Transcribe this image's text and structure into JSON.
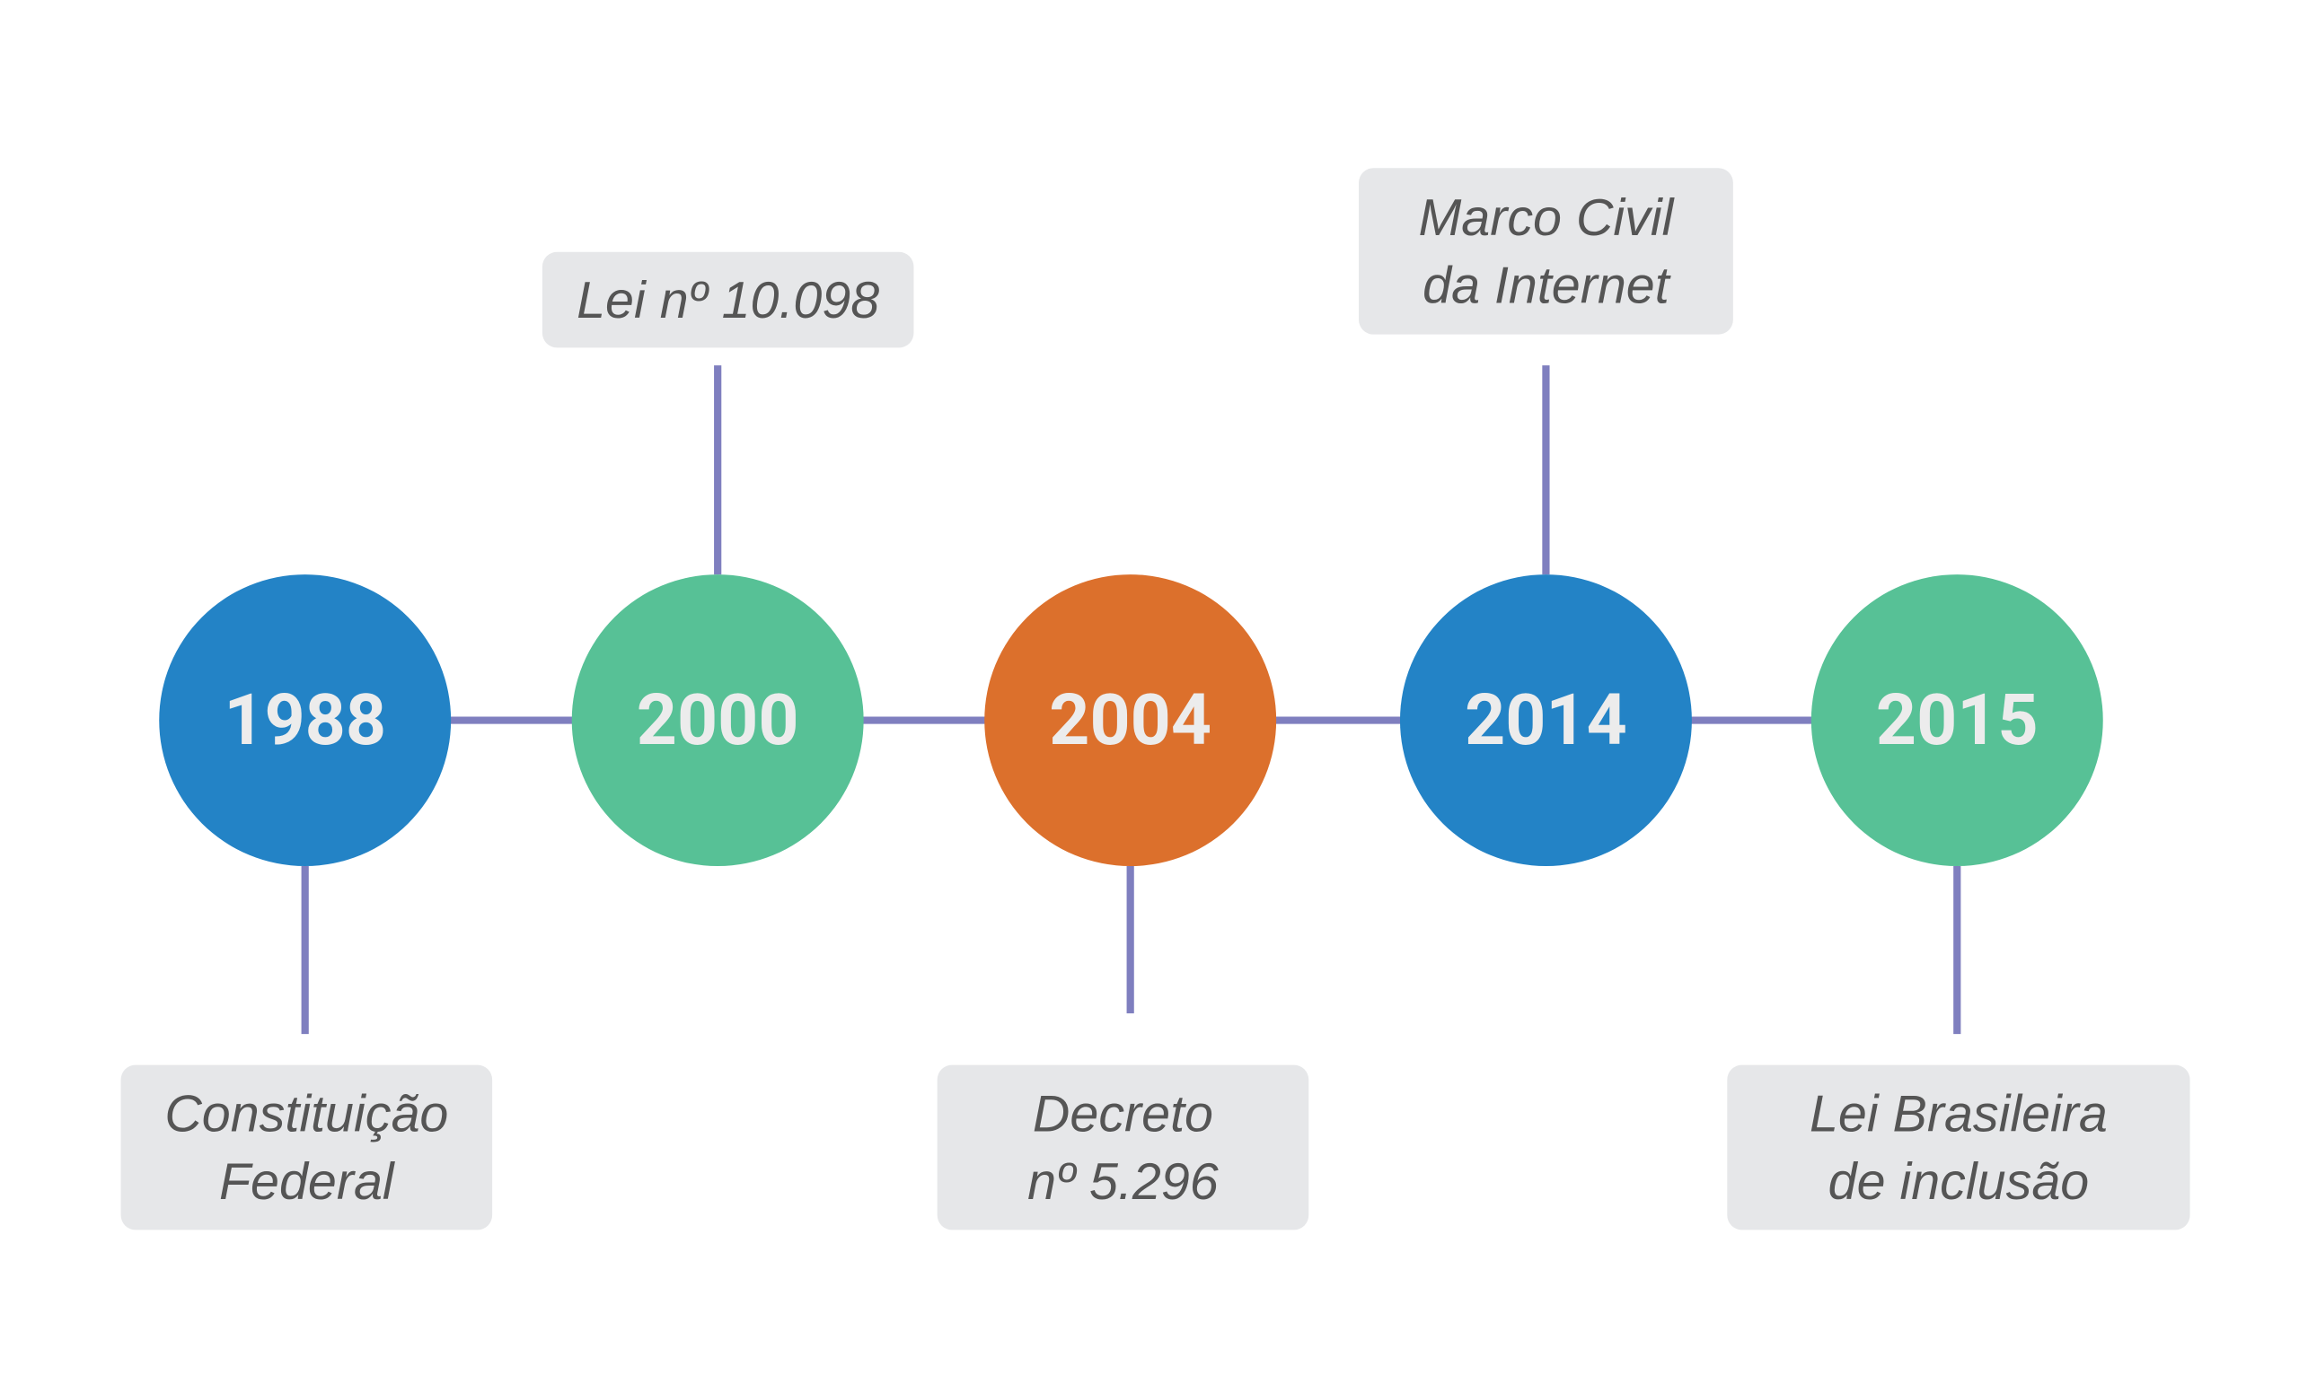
{
  "timeline": {
    "events": [
      {
        "year": "1988",
        "label": [
          "Constituição",
          "Federal"
        ]
      },
      {
        "year": "2000",
        "label": [
          "Lei nº 10.098"
        ]
      },
      {
        "year": "2004",
        "label": [
          "Decreto",
          "nº 5.296"
        ]
      },
      {
        "year": "2014",
        "label": [
          "Marco Civil",
          "da Internet"
        ]
      },
      {
        "year": "2015",
        "label": [
          "Lei Brasileira",
          "de inclusão"
        ]
      }
    ]
  }
}
